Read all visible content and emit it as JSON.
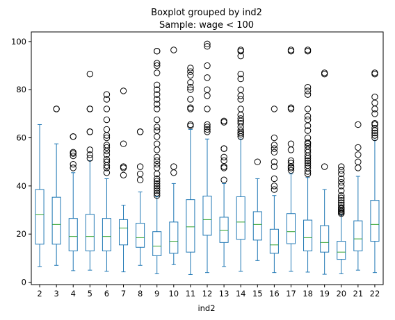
{
  "chart_data": {
    "type": "boxplot",
    "title": "Boxplot grouped by ind2",
    "subtitle": "Sample: wage < 100",
    "xlabel": "ind2",
    "ylabel": "",
    "ylim": [
      -1,
      104
    ],
    "yticks": [
      0,
      20,
      40,
      60,
      80,
      100
    ],
    "grid": false,
    "colors": {
      "box": "#1f77b4",
      "median": "#2ca02c",
      "outlier": "#000000"
    },
    "categories": [
      "2",
      "3",
      "4",
      "5",
      "6",
      "7",
      "8",
      "9",
      "10",
      "11",
      "12",
      "13",
      "14",
      "15",
      "16",
      "17",
      "18",
      "19",
      "20",
      "21",
      "22"
    ],
    "boxes": [
      {
        "q1": 15.8,
        "median": 28.0,
        "q3": 38.5,
        "whislo": 6.5,
        "whishi": 65.5,
        "fliers": []
      },
      {
        "q1": 15.8,
        "median": 24.0,
        "q3": 35.3,
        "whislo": 7.0,
        "whishi": 57.5,
        "fliers": [
          72.0,
          72.0
        ]
      },
      {
        "q1": 13.0,
        "median": 19.0,
        "q3": 26.5,
        "whislo": 4.8,
        "whishi": 45.5,
        "fliers": [
          47.5,
          49.0,
          52.5,
          53.5,
          54.0,
          60.5,
          60.5
        ]
      },
      {
        "q1": 13.0,
        "median": 19.0,
        "q3": 28.2,
        "whislo": 5.0,
        "whishi": 50.5,
        "fliers": [
          51.5,
          53.0,
          55.0,
          62.5,
          62.5,
          72.0,
          72.0,
          86.5
        ]
      },
      {
        "q1": 13.0,
        "median": 19.0,
        "q3": 26.5,
        "whislo": 4.5,
        "whishi": 43.0,
        "fliers": [
          45.5,
          47.5,
          48.5,
          50.0,
          51.0,
          53.0,
          54.5,
          56.0,
          57.0,
          60.0,
          61.0,
          63.5,
          67.5,
          72.0,
          76.0,
          78.0
        ]
      },
      {
        "q1": 15.5,
        "median": 22.5,
        "q3": 26.0,
        "whislo": 4.3,
        "whishi": 32.0,
        "fliers": [
          44.5,
          47.5,
          48.0,
          57.5,
          79.5
        ]
      },
      {
        "q1": 14.5,
        "median": 18.5,
        "q3": 24.5,
        "whislo": 7.0,
        "whishi": 37.5,
        "fliers": [
          42.5,
          45.0,
          48.0,
          62.5,
          62.5
        ]
      },
      {
        "q1": 11.0,
        "median": 15.0,
        "q3": 21.0,
        "whislo": 3.5,
        "whishi": 35.5,
        "fliers": [
          36.0,
          37.0,
          38.0,
          39.0,
          40.0,
          41.0,
          42.0,
          43.0,
          45.0,
          47.5,
          49.0,
          50.5,
          52.0,
          55.0,
          57.5,
          60.5,
          63.0,
          64.5,
          67.5,
          72.0,
          74.0,
          76.0,
          78.0,
          80.0,
          82.0,
          87.0,
          90.0,
          91.0,
          96.0,
          96.0
        ]
      },
      {
        "q1": 12.0,
        "median": 17.0,
        "q3": 25.0,
        "whislo": 7.3,
        "whishi": 41.0,
        "fliers": [
          45.5,
          48.0,
          96.5
        ]
      },
      {
        "q1": 12.5,
        "median": 23.0,
        "q3": 34.3,
        "whislo": 3.2,
        "whishi": 63.5,
        "fliers": [
          65.0,
          65.5,
          72.0,
          72.5,
          76.0,
          80.0,
          81.0,
          83.0,
          86.0,
          87.5,
          89.0
        ]
      },
      {
        "q1": 19.5,
        "median": 26.0,
        "q3": 35.8,
        "whislo": 4.0,
        "whishi": 59.5,
        "fliers": [
          62.5,
          63.5,
          64.5,
          65.5,
          72.0,
          77.5,
          80.0,
          85.0,
          90.0,
          98.0,
          99.0
        ]
      },
      {
        "q1": 16.5,
        "median": 21.5,
        "q3": 27.0,
        "whislo": 6.5,
        "whishi": 41.0,
        "fliers": [
          42.5,
          47.5,
          48.0,
          50.5,
          52.0,
          55.5,
          55.5,
          66.5,
          67.0
        ]
      },
      {
        "q1": 17.8,
        "median": 25.0,
        "q3": 35.5,
        "whislo": 4.5,
        "whishi": 59.5,
        "fliers": [
          60.5,
          61.5,
          62.0,
          63.0,
          64.5,
          66.0,
          67.0,
          68.0,
          69.5,
          72.0,
          76.0,
          77.5,
          80.0,
          84.5,
          86.5,
          94.0,
          96.0,
          96.5
        ]
      },
      {
        "q1": 17.5,
        "median": 24.0,
        "q3": 29.3,
        "whislo": 9.0,
        "whishi": 43.0,
        "fliers": [
          50.0
        ]
      },
      {
        "q1": 12.0,
        "median": 15.5,
        "q3": 22.0,
        "whislo": 4.0,
        "whishi": 36.0,
        "fliers": [
          38.5,
          40.0,
          43.0,
          48.0,
          50.0,
          54.0,
          55.5,
          57.0,
          60.0,
          72.0
        ]
      },
      {
        "q1": 16.0,
        "median": 21.0,
        "q3": 28.5,
        "whislo": 4.5,
        "whishi": 45.0,
        "fliers": [
          46.5,
          47.5,
          48.0,
          49.5,
          50.5,
          55.0,
          57.5,
          72.0,
          72.5,
          96.0,
          96.5
        ]
      },
      {
        "q1": 13.0,
        "median": 18.5,
        "q3": 25.8,
        "whislo": 4.2,
        "whishi": 43.5,
        "fliers": [
          45.0,
          46.0,
          47.5,
          48.5,
          49.5,
          50.5,
          51.5,
          52.5,
          54.0,
          55.0,
          56.5,
          57.5,
          58.0,
          60.0,
          63.0,
          65.0,
          67.5,
          69.0,
          72.0,
          78.0,
          79.5,
          81.0,
          96.0,
          96.5
        ]
      },
      {
        "q1": 12.5,
        "median": 16.5,
        "q3": 23.5,
        "whislo": 3.3,
        "whishi": 38.5,
        "fliers": [
          48.0,
          86.5,
          87.0
        ]
      },
      {
        "q1": 9.5,
        "median": 12.5,
        "q3": 17.0,
        "whislo": 3.5,
        "whishi": 28.0,
        "fliers": [
          28.5,
          29.0,
          29.5,
          30.0,
          30.5,
          31.0,
          32.0,
          33.0,
          34.0,
          35.0,
          36.0,
          38.0,
          40.0,
          41.5,
          43.0,
          45.0,
          46.5,
          48.0
        ]
      },
      {
        "q1": 13.0,
        "median": 18.0,
        "q3": 25.5,
        "whislo": 5.0,
        "whishi": 44.0,
        "fliers": [
          47.5,
          50.0,
          53.0,
          56.0,
          65.5
        ]
      },
      {
        "q1": 17.0,
        "median": 24.0,
        "q3": 34.0,
        "whislo": 4.0,
        "whishi": 59.0,
        "fliers": [
          60.0,
          61.0,
          62.0,
          63.0,
          64.0,
          65.5,
          66.0,
          70.0,
          72.0,
          74.5,
          77.0,
          86.5,
          87.0
        ]
      }
    ]
  }
}
